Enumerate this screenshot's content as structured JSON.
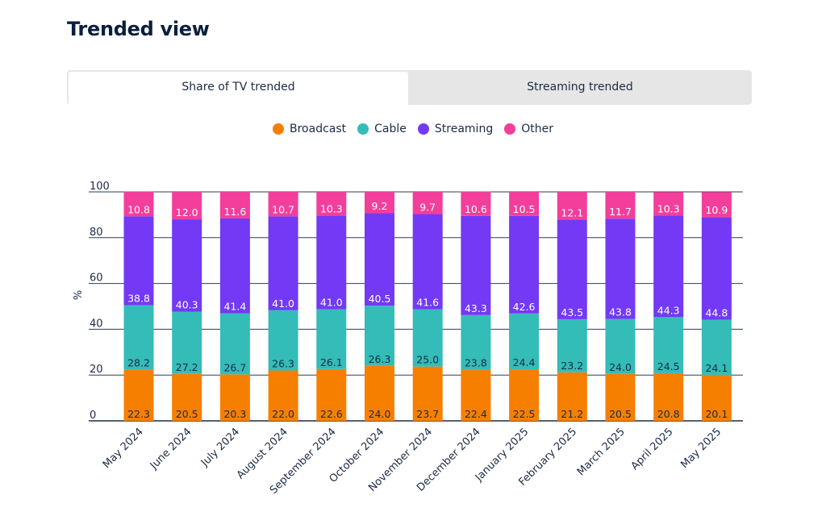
{
  "page": {
    "title": "Trended view",
    "tabs": [
      {
        "label": "Share of TV trended",
        "active": true
      },
      {
        "label": "Streaming trended",
        "active": false
      }
    ]
  },
  "chart_data": {
    "type": "bar",
    "stacked": true,
    "title": "",
    "xlabel": "",
    "ylabel": "%",
    "ylim": [
      0,
      100
    ],
    "yticks": [
      0,
      20,
      40,
      60,
      80,
      100
    ],
    "grid": true,
    "legend_position": "top-center",
    "categories": [
      "May 2024",
      "June 2024",
      "July 2024",
      "August 2024",
      "September 2024",
      "October 2024",
      "November 2024",
      "December 2024",
      "January 2025",
      "February 2025",
      "March 2025",
      "April 2025",
      "May 2025"
    ],
    "series": [
      {
        "name": "Broadcast",
        "color": "#f77f00",
        "label_color": "#1b2b44",
        "values": [
          22.3,
          20.5,
          20.3,
          22.0,
          22.6,
          24.0,
          23.7,
          22.4,
          22.5,
          21.2,
          20.5,
          20.8,
          20.1
        ]
      },
      {
        "name": "Cable",
        "color": "#34bcb8",
        "label_color": "#1b2b44",
        "values": [
          28.2,
          27.2,
          26.7,
          26.3,
          26.1,
          26.3,
          25.0,
          23.8,
          24.4,
          23.2,
          24.0,
          24.5,
          24.1
        ]
      },
      {
        "name": "Streaming",
        "color": "#7339f5",
        "label_color": "#ffffff",
        "values": [
          38.8,
          40.3,
          41.4,
          41.0,
          41.0,
          40.5,
          41.6,
          43.3,
          42.6,
          43.5,
          43.8,
          44.3,
          44.8
        ]
      },
      {
        "name": "Other",
        "color": "#f43e9b",
        "label_color": "#ffffff",
        "values": [
          10.8,
          12.0,
          11.6,
          10.7,
          10.3,
          9.2,
          9.7,
          10.6,
          10.5,
          12.1,
          11.7,
          10.3,
          10.9
        ]
      }
    ]
  }
}
